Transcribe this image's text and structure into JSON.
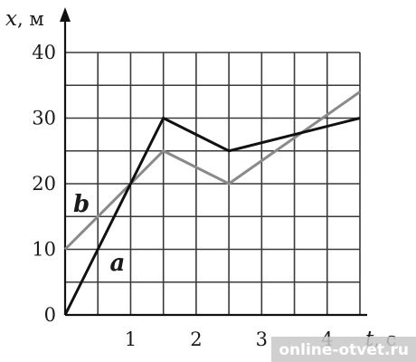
{
  "chart_data": {
    "type": "line",
    "xlabel": "t",
    "xunit": ", с",
    "ylabel": "x",
    "yunit": ", м",
    "xlim": [
      0,
      4.5
    ],
    "ylim": [
      0,
      40
    ],
    "x_gridlines": [
      0.5,
      1,
      1.5,
      2,
      2.5,
      3,
      3.5,
      4,
      4.5
    ],
    "y_gridlines": [
      5,
      10,
      15,
      20,
      25,
      30,
      35,
      40
    ],
    "x_ticks": [
      {
        "value": 1,
        "label": "1"
      },
      {
        "value": 2,
        "label": "2"
      },
      {
        "value": 3,
        "label": "3"
      },
      {
        "value": 4,
        "label": "4"
      }
    ],
    "y_ticks": [
      {
        "value": 0,
        "label": "0"
      },
      {
        "value": 10,
        "label": "10"
      },
      {
        "value": 20,
        "label": "20"
      },
      {
        "value": 30,
        "label": "30"
      },
      {
        "value": 40,
        "label": "40"
      }
    ],
    "grid": true,
    "series": [
      {
        "name": "a",
        "color": "#111111",
        "points": [
          [
            0,
            0
          ],
          [
            1.5,
            30
          ],
          [
            2.5,
            25
          ],
          [
            4.5,
            30
          ]
        ],
        "label_at": [
          0.8,
          8
        ]
      },
      {
        "name": "b",
        "color": "#8a8a8a",
        "points": [
          [
            0,
            10
          ],
          [
            1.5,
            25
          ],
          [
            2.5,
            20
          ],
          [
            4.5,
            34
          ]
        ],
        "label_at": [
          0.25,
          17
        ]
      }
    ]
  },
  "watermark": "online-otvet.ru"
}
